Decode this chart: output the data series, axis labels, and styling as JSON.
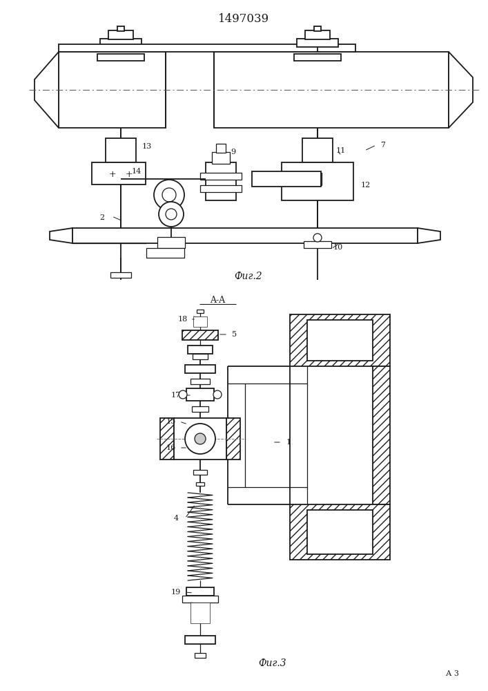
{
  "title": "1497039",
  "fig2_label": "Фиг.2",
  "fig3_label": "Фиг.3",
  "aa_label": "A-A",
  "background": "#ffffff",
  "line_color": "#1a1a1a",
  "lw": 0.9,
  "lw2": 1.3,
  "lw_thin": 0.5
}
